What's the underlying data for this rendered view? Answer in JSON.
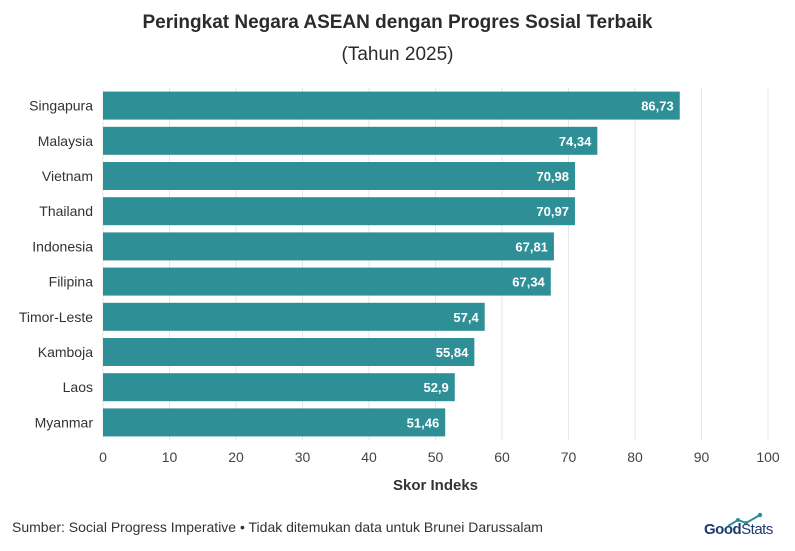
{
  "title": "Peringkat Negara ASEAN dengan Progres Sosial Terbaik",
  "subtitle": "(Tahun 2025)",
  "footer": "Sumber: Social Progress Imperative • Tidak ditemukan data untuk Brunei Darussalam",
  "logo": {
    "bold": "Good",
    "light": "Stats"
  },
  "colors": {
    "bar": "#2f8f97",
    "grid": "#e6e6e6",
    "label": "#ffffff"
  },
  "chart_data": {
    "type": "bar",
    "orientation": "horizontal",
    "categories": [
      "Singapura",
      "Malaysia",
      "Vietnam",
      "Thailand",
      "Indonesia",
      "Filipina",
      "Timor-Leste",
      "Kamboja",
      "Laos",
      "Myanmar"
    ],
    "values": [
      86.73,
      74.34,
      70.98,
      70.97,
      67.81,
      67.34,
      57.4,
      55.84,
      52.9,
      51.46
    ],
    "value_labels": [
      "86,73",
      "74,34",
      "70,98",
      "70,97",
      "67,81",
      "67,34",
      "57,4",
      "55,84",
      "52,9",
      "51,46"
    ],
    "xlabel": "Skor Indeks",
    "xlim": [
      0,
      100
    ],
    "xticks": [
      0,
      10,
      20,
      30,
      40,
      50,
      60,
      70,
      80,
      90,
      100
    ],
    "grid": true,
    "legend": "none"
  }
}
